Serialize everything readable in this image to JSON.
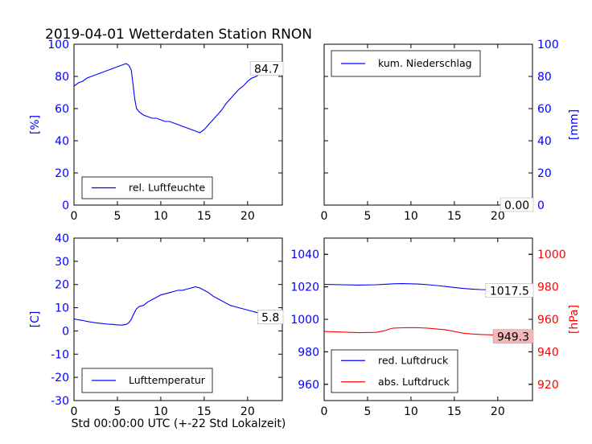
{
  "figure": {
    "title": "2019-04-01 Wetterdaten Station RNON",
    "xlabel": "Std 00:00:00 UTC (+-22 Std Lokalzeit)"
  },
  "colors": {
    "blue": "#0000ff",
    "red": "#ff0000",
    "pressure_badge": "#f4b8b8"
  },
  "chart_data": [
    {
      "type": "line",
      "id": "humidity",
      "ylabel": "[%]",
      "xlim": [
        0,
        24
      ],
      "ylim": [
        0,
        100
      ],
      "xticks": [
        0,
        5,
        10,
        15,
        20
      ],
      "yticks": [
        0,
        20,
        40,
        60,
        80,
        100
      ],
      "axis_side": "left",
      "legend_position": "lower-left",
      "series": [
        {
          "name": "rel. Luftfeuchte",
          "color": "#0000ff",
          "x": [
            0,
            0.5,
            1,
            1.5,
            2,
            2.5,
            3,
            3.5,
            4,
            4.5,
            5,
            5.5,
            6,
            6.3,
            6.6,
            6.8,
            7,
            7.2,
            7.5,
            8,
            8.5,
            9,
            9.5,
            10,
            10.5,
            11,
            11.5,
            12,
            12.5,
            13,
            13.5,
            14,
            14.5,
            15,
            15.5,
            16,
            16.5,
            17,
            17.5,
            18,
            18.5,
            19,
            19.5,
            20,
            20.5,
            21,
            21.5,
            22,
            22.5,
            23,
            23.5,
            24
          ],
          "y": [
            74,
            76,
            77,
            79,
            80,
            81,
            82,
            83,
            84,
            85,
            86,
            87,
            88,
            87,
            84,
            75,
            66,
            60,
            58,
            56,
            55,
            54,
            54,
            53,
            52,
            52,
            51,
            50,
            49,
            48,
            47,
            46,
            45,
            47,
            50,
            53,
            56,
            59,
            63,
            66,
            69,
            72,
            74,
            77,
            79,
            80,
            82,
            83,
            86,
            85,
            82,
            85
          ]
        }
      ],
      "annotation": {
        "text": "84.7",
        "x": 24,
        "y": 84.7
      }
    },
    {
      "type": "line",
      "id": "precipitation",
      "ylabel": "[mm]",
      "xlim": [
        0,
        24
      ],
      "ylim": [
        0,
        100
      ],
      "xticks": [
        0,
        5,
        10,
        15,
        20
      ],
      "yticks": [
        0,
        20,
        40,
        60,
        80,
        100
      ],
      "axis_side": "right",
      "legend_position": "upper-left",
      "series": [
        {
          "name": "kum. Niederschlag",
          "color": "#0000ff",
          "x": [
            0,
            24
          ],
          "y": [
            0,
            0
          ]
        }
      ],
      "annotation": {
        "text": "0.00",
        "x": 24,
        "y": 0
      }
    },
    {
      "type": "line",
      "id": "temperature",
      "ylabel": "[C]",
      "xlim": [
        0,
        24
      ],
      "ylim": [
        -30,
        40
      ],
      "xticks": [
        0,
        5,
        10,
        15,
        20
      ],
      "yticks": [
        -30,
        -20,
        -10,
        0,
        10,
        20,
        30,
        40
      ],
      "axis_side": "left",
      "legend_position": "lower-left",
      "series": [
        {
          "name": "Lufttemperatur",
          "color": "#0000ff",
          "x": [
            0,
            0.5,
            1,
            1.5,
            2,
            2.5,
            3,
            3.5,
            4,
            4.5,
            5,
            5.5,
            6,
            6.3,
            6.6,
            6.9,
            7.2,
            7.5,
            8,
            8.5,
            9,
            9.5,
            10,
            10.5,
            11,
            11.5,
            12,
            12.5,
            13,
            13.5,
            14,
            14.5,
            15,
            15.5,
            16,
            16.5,
            17,
            17.5,
            18,
            18.5,
            19,
            19.5,
            20,
            20.5,
            21,
            21.5,
            22,
            22.5,
            23,
            23.5,
            24
          ],
          "y": [
            5.2,
            4.8,
            4.5,
            4.1,
            3.8,
            3.5,
            3.3,
            3.1,
            2.9,
            2.8,
            2.6,
            2.5,
            2.8,
            3.5,
            5,
            7.5,
            9.5,
            10.5,
            11,
            12.5,
            13.5,
            14.5,
            15.5,
            16,
            16.5,
            17,
            17.5,
            17.5,
            18,
            18.5,
            19,
            18.5,
            17.5,
            16.5,
            15,
            14,
            13,
            12,
            11,
            10.5,
            10,
            9.5,
            9,
            8.5,
            8,
            7.5,
            7,
            6.5,
            6,
            5.9,
            5.8
          ]
        }
      ],
      "annotation": {
        "text": "5.8",
        "x": 24,
        "y": 5.8
      }
    },
    {
      "type": "line",
      "id": "pressure",
      "ylabel": "[hPa]",
      "xlim": [
        0,
        24
      ],
      "ylim_left": [
        950,
        1050
      ],
      "ylim_right": [
        910,
        1010
      ],
      "xticks": [
        0,
        5,
        10,
        15,
        20
      ],
      "yticks_left": [
        960,
        980,
        1000,
        1020,
        1040
      ],
      "yticks_right": [
        920,
        940,
        960,
        980,
        1000
      ],
      "legend_position": "lower-left",
      "series": [
        {
          "name": "red. Luftdruck",
          "color": "#0000ff",
          "axis": "left",
          "x": [
            0,
            2,
            4,
            6,
            7,
            8,
            9,
            10,
            11,
            12,
            13,
            14,
            15,
            16,
            17,
            18,
            19,
            20,
            21,
            22,
            23,
            24
          ],
          "y": [
            1021.5,
            1021.3,
            1021.1,
            1021.3,
            1021.6,
            1021.9,
            1022,
            1021.9,
            1021.7,
            1021.3,
            1020.8,
            1020.2,
            1019.6,
            1019,
            1018.6,
            1018.3,
            1018.2,
            1018.1,
            1018.2,
            1018.3,
            1018.2,
            1017.5
          ]
        },
        {
          "name": "abs. Luftdruck",
          "color": "#ff0000",
          "axis": "right",
          "x": [
            0,
            2,
            4,
            6,
            7,
            7.5,
            8,
            9,
            10,
            11,
            12,
            13,
            14,
            15,
            16,
            17,
            18,
            19,
            20,
            21,
            22,
            23,
            24
          ],
          "y": [
            952.5,
            952.2,
            951.8,
            952,
            953,
            954,
            954.6,
            954.8,
            954.9,
            954.8,
            954.5,
            954,
            953.5,
            952.5,
            951.5,
            951,
            950.7,
            950.5,
            950.3,
            950.2,
            950.1,
            949.9,
            949.3
          ]
        }
      ],
      "annotations": [
        {
          "text": "1017.5",
          "x": 24,
          "y": 1017.5,
          "axis": "left",
          "background": "#ffffff"
        },
        {
          "text": "949.3",
          "x": 24,
          "y": 949.3,
          "axis": "right",
          "background": "#f4b8b8"
        }
      ]
    }
  ]
}
